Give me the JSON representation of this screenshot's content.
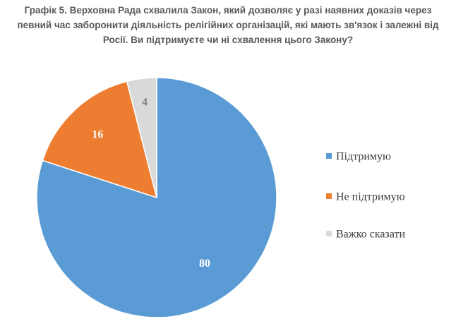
{
  "title_lines": [
    "Графік 5. Верховна Рада схвалила Закон, який дозволяє у разі наявних доказів через",
    "певний час заборонити діяльність релігійних організацій, які мають зв'язок і залежні від",
    "Росії. Ви підтримуєте чи ні схвалення цього Закону?"
  ],
  "chart_data": {
    "type": "pie",
    "title": "Графік 5. Верховна Рада схвалила Закон, який дозволяє у разі наявних доказів через певний час заборонити діяльність релігійних організацій, які мають зв'язок і залежні від Росії. Ви підтримуєте чи ні схвалення цього Закону?",
    "categories": [
      "Підтримую",
      "Не підтримую",
      "Важко сказати"
    ],
    "values": [
      80,
      16,
      4
    ],
    "colors": [
      "#5B9BD5",
      "#ED7D31",
      "#D9D9D9"
    ],
    "label_colors": [
      "#ffffff",
      "#ffffff",
      "#7f7f7f"
    ],
    "legend_position": "right"
  }
}
